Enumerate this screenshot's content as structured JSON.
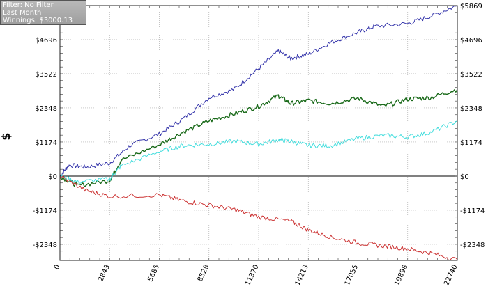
{
  "filter_box": {
    "filter_line": "Filter: No Filter",
    "period_line": "Last Month",
    "winnings_line": "Winnings: $3000.13"
  },
  "chart_data": {
    "type": "line",
    "ylabel": "$",
    "xlabel": "",
    "xlim": [
      0,
      22740
    ],
    "ylim": [
      -2900,
      5869
    ],
    "x_ticks": [
      0,
      2843,
      5685,
      8528,
      11370,
      14213,
      17055,
      19898,
      22740
    ],
    "y_ticks": [
      -2348,
      -1174,
      0,
      1174,
      2348,
      3522,
      4696,
      5869
    ],
    "y_tick_labels": [
      "-$2348",
      "-$1174",
      "$0",
      "$1174",
      "$2348",
      "$3522",
      "$4696",
      "$5869"
    ],
    "grid": true,
    "zero_line": true,
    "series": [
      {
        "color": "#3333aa",
        "points": [
          [
            0,
            0
          ],
          [
            500,
            380
          ],
          [
            1500,
            310
          ],
          [
            2843,
            450
          ],
          [
            4000,
            1050
          ],
          [
            5685,
            1450
          ],
          [
            7000,
            1950
          ],
          [
            8528,
            2700
          ],
          [
            10000,
            3000
          ],
          [
            11370,
            3700
          ],
          [
            12500,
            4300
          ],
          [
            13200,
            4050
          ],
          [
            14213,
            4200
          ],
          [
            15500,
            4600
          ],
          [
            17055,
            4950
          ],
          [
            18000,
            5150
          ],
          [
            19898,
            5250
          ],
          [
            21200,
            5500
          ],
          [
            22740,
            5869
          ]
        ]
      },
      {
        "color": "#1a6a1a",
        "points": [
          [
            0,
            0
          ],
          [
            1000,
            -330
          ],
          [
            2843,
            -150
          ],
          [
            3500,
            550
          ],
          [
            5685,
            1080
          ],
          [
            7000,
            1500
          ],
          [
            8528,
            1900
          ],
          [
            10000,
            2150
          ],
          [
            11370,
            2400
          ],
          [
            12500,
            2770
          ],
          [
            13200,
            2500
          ],
          [
            14213,
            2600
          ],
          [
            15500,
            2500
          ],
          [
            17055,
            2680
          ],
          [
            18500,
            2400
          ],
          [
            19898,
            2650
          ],
          [
            21200,
            2700
          ],
          [
            22740,
            2990
          ]
        ]
      },
      {
        "color": "#44dddd",
        "points": [
          [
            0,
            0
          ],
          [
            1000,
            -200
          ],
          [
            2843,
            -100
          ],
          [
            3500,
            350
          ],
          [
            5685,
            850
          ],
          [
            7000,
            1050
          ],
          [
            8528,
            1100
          ],
          [
            10000,
            1200
          ],
          [
            11370,
            1100
          ],
          [
            12500,
            1250
          ],
          [
            13200,
            1200
          ],
          [
            14213,
            1050
          ],
          [
            15500,
            1050
          ],
          [
            17055,
            1300
          ],
          [
            18500,
            1400
          ],
          [
            19898,
            1350
          ],
          [
            21200,
            1500
          ],
          [
            22740,
            1900
          ]
        ]
      },
      {
        "color": "#cc3333",
        "points": [
          [
            0,
            0
          ],
          [
            1500,
            -500
          ],
          [
            2843,
            -700
          ],
          [
            5685,
            -650
          ],
          [
            7000,
            -850
          ],
          [
            8528,
            -1000
          ],
          [
            10000,
            -1150
          ],
          [
            11370,
            -1400
          ],
          [
            13200,
            -1550
          ],
          [
            14213,
            -1850
          ],
          [
            15500,
            -2100
          ],
          [
            17055,
            -2300
          ],
          [
            18500,
            -2400
          ],
          [
            19898,
            -2500
          ],
          [
            21200,
            -2650
          ],
          [
            22740,
            -2880
          ]
        ]
      }
    ]
  }
}
